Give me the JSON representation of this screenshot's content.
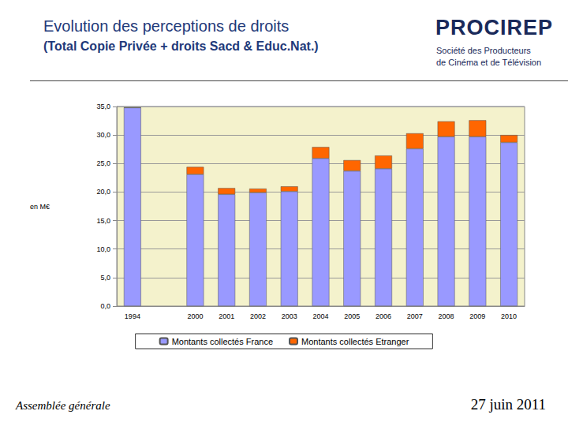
{
  "chart_data": {
    "type": "bar",
    "title": "Evolution des perceptions de droits",
    "subtitle": "(Total Copie Privée + droits Sacd & Educ.Nat.)",
    "y_label": "en M€",
    "categories": [
      "1994",
      null,
      "2000",
      "2001",
      "2002",
      "2003",
      "2004",
      "2005",
      "2006",
      "2007",
      "2008",
      "2009",
      "2010"
    ],
    "series": [
      {
        "name": "Montants collectés France",
        "color": "#9999ff",
        "values": [
          34.8,
          null,
          23.1,
          19.6,
          19.9,
          20.1,
          25.9,
          23.7,
          24.1,
          27.6,
          29.7,
          29.7,
          28.7
        ]
      },
      {
        "name": "Montants collectés Etranger",
        "color": "#ff6600",
        "values": [
          0,
          null,
          1.3,
          1.1,
          0.7,
          0.9,
          2.0,
          1.9,
          2.3,
          2.7,
          2.7,
          2.9,
          1.3
        ]
      }
    ],
    "stacked": true,
    "ylim": [
      0,
      35
    ],
    "yticks": [
      {
        "value": 0,
        "label": "0,0"
      },
      {
        "value": 5,
        "label": "5,0"
      },
      {
        "value": 10,
        "label": "10,0"
      },
      {
        "value": 15,
        "label": "15,0"
      },
      {
        "value": 20,
        "label": "20,0"
      },
      {
        "value": 25,
        "label": "25,0"
      },
      {
        "value": 30,
        "label": "30,0"
      },
      {
        "value": 35,
        "label": "35,0"
      }
    ],
    "grid": true,
    "legend": "bottom"
  },
  "logo": {
    "name": "PROCIREP",
    "lines": [
      "Société des Producteurs",
      "de Cinéma et de Télévision"
    ]
  },
  "footer": {
    "left": "Assemblée générale",
    "right": "27 juin 2011"
  }
}
